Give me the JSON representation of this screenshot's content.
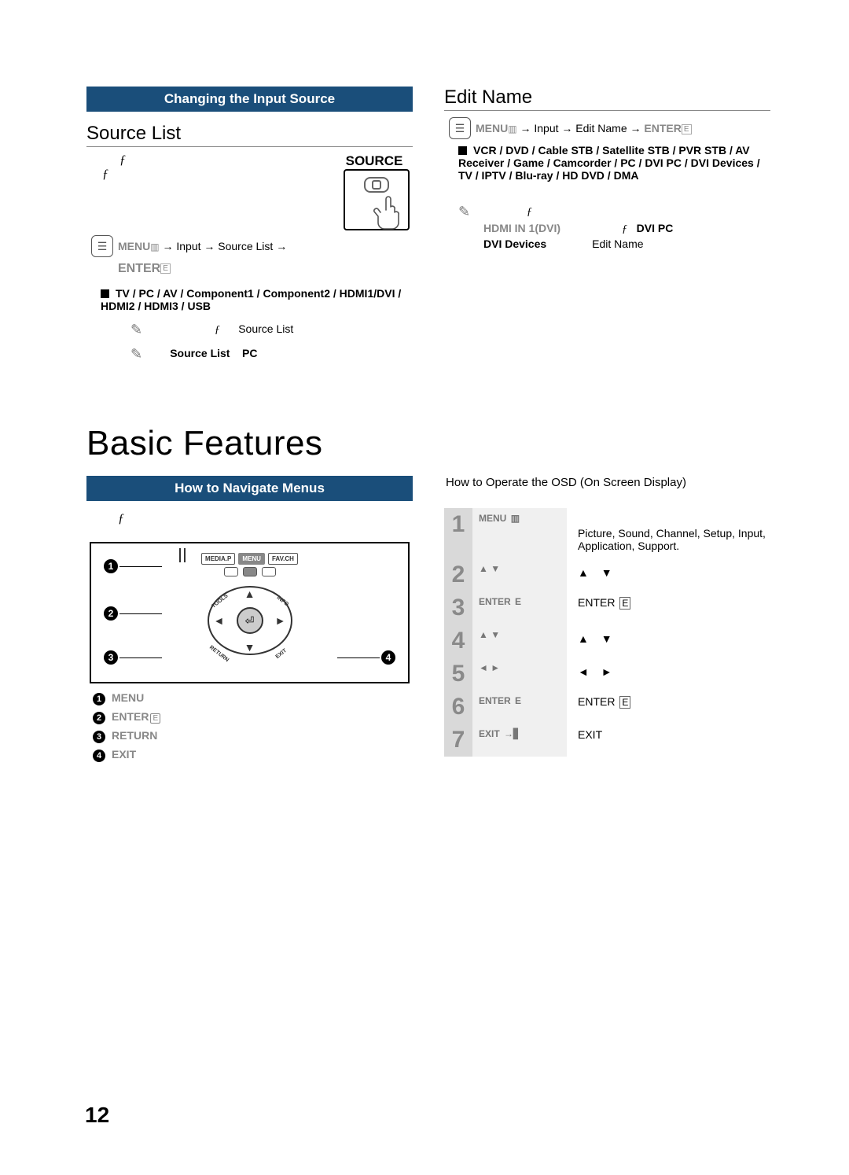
{
  "colors": {
    "banner_bg": "#1a4e7a",
    "banner_fg": "#ffffff",
    "light_grey": "#888888"
  },
  "left_top": {
    "banner": "Changing the Input Source",
    "heading": "Source List",
    "f_marks": [
      "ƒ",
      "ƒ"
    ],
    "source_label": "SOURCE",
    "menu_path_parts": [
      "MENU",
      "→ Input → Source List →",
      "ENTER"
    ],
    "source_options": "TV / PC / AV / Component1 / Component2 / HDMI1/DVI / HDMI2 / HDMI3 / USB",
    "note1_prefix": "ƒ",
    "note1_text": "Source List",
    "note2_text": "Source List",
    "note2_suffix": "PC"
  },
  "right_top": {
    "heading": "Edit Name",
    "menu_path_parts": [
      "MENU",
      "→ Input → Edit Name →",
      "ENTER"
    ],
    "edit_options": "VCR / DVD / Cable STB / Satellite STB / PVR STB / AV Receiver / Game / Camcorder / PC / DVI PC / DVI Devices / TV / IPTV / Blu-ray / HD DVD / DMA",
    "hdmi_label": "HDMI IN 1(DVI)",
    "dvi_pc_label": "DVI PC",
    "dvi_devices_label": "DVI Devices",
    "edit_name_small": "Edit Name",
    "f_mark": "ƒ",
    "f_mark2": "ƒ"
  },
  "basic_features_title": "Basic Features",
  "left_bottom": {
    "banner": "How to Navigate Menus",
    "f_mark": "ƒ",
    "remote_buttons": {
      "mediap": "MEDIA.P",
      "menu": "MENU",
      "favch": "FAV.CH",
      "tools": "TOOLS",
      "info": "INFO",
      "return": "RETURN",
      "exit": "EXIT"
    },
    "legend": [
      {
        "n": "1",
        "label": "MENU",
        "glyph": ""
      },
      {
        "n": "2",
        "label": "ENTER",
        "glyph": "E"
      },
      {
        "n": "3",
        "label": "RETURN",
        "glyph": ""
      },
      {
        "n": "4",
        "label": "EXIT",
        "glyph": ""
      }
    ]
  },
  "right_bottom": {
    "heading": "How to Operate the OSD (On Screen Display)",
    "rows": [
      {
        "n": "1",
        "key": "MENU",
        "key_glyph": "▥",
        "desc": "Picture, Sound, Channel, Setup, Input, Application, Support.",
        "desc_prefix": "",
        "desc_suffix_arrows": ""
      },
      {
        "n": "2",
        "key": "▲  ▼",
        "key_glyph": "",
        "desc": "",
        "desc_suffix_arrows": "▲   ▼"
      },
      {
        "n": "3",
        "key": "ENTER",
        "key_glyph": "E",
        "desc": "ENTER",
        "desc_glyph": "E"
      },
      {
        "n": "4",
        "key": "▲  ▼",
        "key_glyph": "",
        "desc": "",
        "desc_suffix_arrows": "▲   ▼"
      },
      {
        "n": "5",
        "key": "◄  ►",
        "key_glyph": "",
        "desc": "",
        "desc_suffix_arrows": "◄   ►"
      },
      {
        "n": "6",
        "key": "ENTER",
        "key_glyph": "E",
        "desc": "ENTER",
        "desc_glyph": "E"
      },
      {
        "n": "7",
        "key": "EXIT",
        "key_glyph": "→▋",
        "desc": "EXIT"
      }
    ]
  },
  "page_number": "12"
}
